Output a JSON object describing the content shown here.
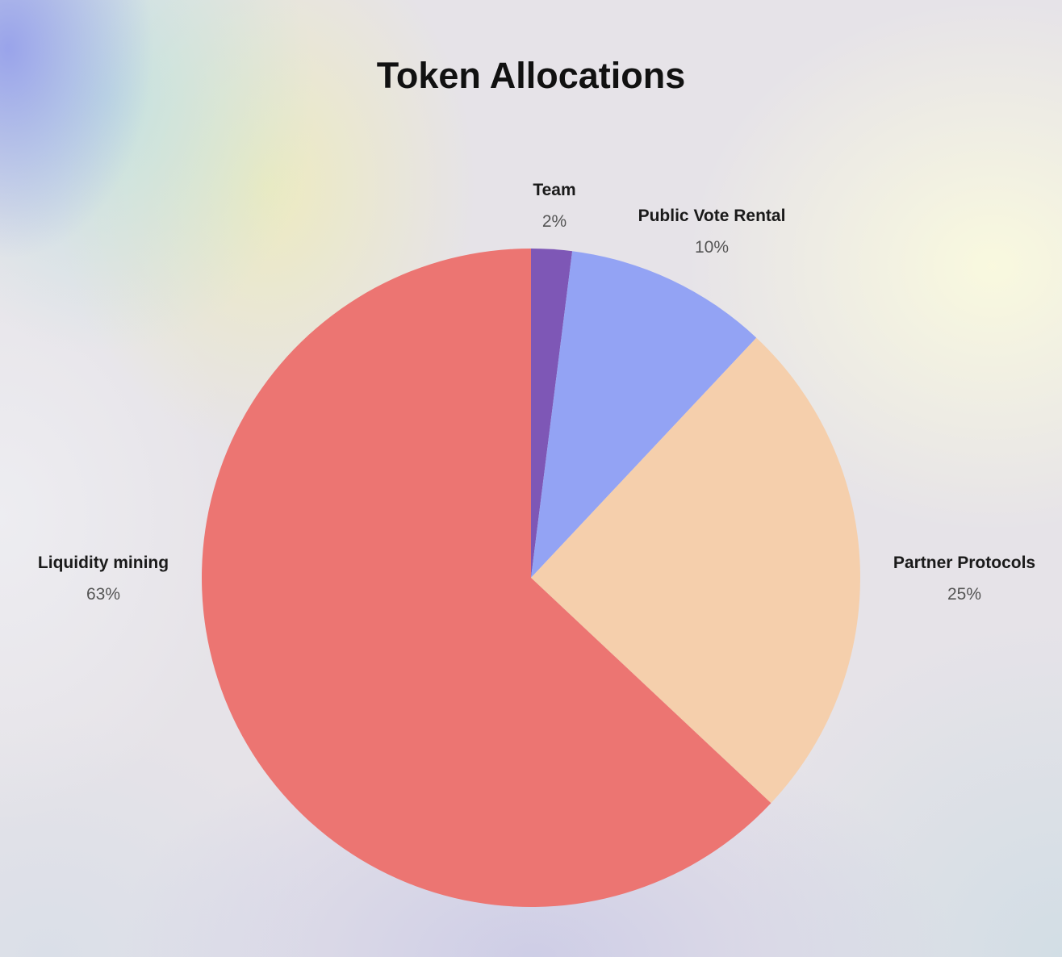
{
  "chart_data": {
    "type": "pie",
    "title": "Token Allocations",
    "slices": [
      {
        "label": "Team",
        "value": 2,
        "value_label": "2%",
        "color": "#7e57b6"
      },
      {
        "label": "Public Vote Rental",
        "value": 10,
        "value_label": "10%",
        "color": "#93a3f4"
      },
      {
        "label": "Partner Protocols",
        "value": 25,
        "value_label": "25%",
        "color": "#f5cfac"
      },
      {
        "label": "Liquidity mining",
        "value": 63,
        "value_label": "63%",
        "color": "#ec7572"
      }
    ],
    "start_angle": "12 o'clock",
    "direction": "clockwise",
    "legend": "none",
    "labels": "outside"
  }
}
